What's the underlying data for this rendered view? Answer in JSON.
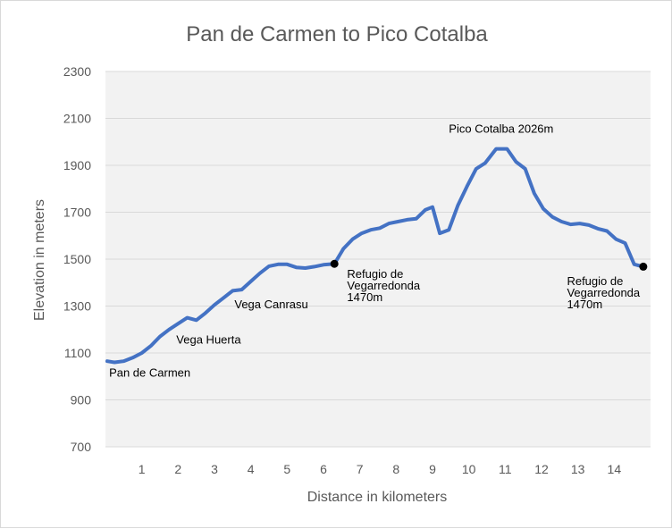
{
  "chart_data": {
    "type": "line",
    "title": "Pan de Carmen to Pico Cotalba",
    "xlabel": "Distance in kilometers",
    "ylabel": "Elevation in meters",
    "xlim": [
      0,
      15
    ],
    "ylim": [
      700,
      2300
    ],
    "x_ticks": [
      "1",
      "2",
      "3",
      "4",
      "5",
      "6",
      "7",
      "8",
      "9",
      "10",
      "11",
      "12",
      "13",
      "14"
    ],
    "y_ticks": [
      "2300",
      "2100",
      "1900",
      "1700",
      "1500",
      "1300",
      "1100",
      "900",
      "700"
    ],
    "grid": true,
    "legend": "none",
    "colors": {
      "line": "#4472c4",
      "plot_bg": "#f2f2f2",
      "grid": "#d9d9d9",
      "marker": "#000000"
    },
    "series": [
      {
        "x": [
          0.05,
          0.25,
          0.5,
          0.75,
          1.0,
          1.25,
          1.5,
          1.75,
          2.0,
          2.25,
          2.5,
          2.75,
          3.0,
          3.25,
          3.5,
          3.75,
          4.0,
          4.25,
          4.5,
          4.75,
          5.0,
          5.25,
          5.5,
          5.75,
          6.0,
          6.3,
          6.55,
          6.8,
          7.05,
          7.3,
          7.55,
          7.8,
          8.05,
          8.3,
          8.55,
          8.8,
          9.0,
          9.2,
          9.45,
          9.7,
          9.95,
          10.2,
          10.45,
          10.75,
          11.05,
          11.3,
          11.55,
          11.8,
          12.05,
          12.3,
          12.55,
          12.8,
          13.05,
          13.3,
          13.55,
          13.8,
          14.05,
          14.3,
          14.55,
          14.8
        ],
        "values": [
          1065,
          1060,
          1065,
          1080,
          1100,
          1130,
          1170,
          1200,
          1225,
          1250,
          1240,
          1270,
          1305,
          1335,
          1365,
          1370,
          1405,
          1440,
          1470,
          1478,
          1478,
          1465,
          1462,
          1468,
          1476,
          1480,
          1545,
          1585,
          1610,
          1625,
          1632,
          1652,
          1660,
          1668,
          1672,
          1710,
          1722,
          1610,
          1625,
          1730,
          1810,
          1885,
          1910,
          1970,
          1970,
          1915,
          1885,
          1780,
          1715,
          1680,
          1660,
          1648,
          1652,
          1645,
          1630,
          1620,
          1585,
          1568,
          1478,
          1468
        ]
      }
    ],
    "markers": [
      {
        "x": 6.3,
        "y": 1480
      },
      {
        "x": 14.8,
        "y": 1468
      }
    ],
    "annotations": [
      {
        "id": "pan-de-carmen",
        "lines": [
          "Pan de Carmen"
        ],
        "x": 0.1,
        "y": 1000
      },
      {
        "id": "vega-huerta",
        "lines": [
          "Vega Huerta"
        ],
        "x": 1.95,
        "y": 1140
      },
      {
        "id": "vega-canrasu",
        "lines": [
          "Vega Canrasu"
        ],
        "x": 3.55,
        "y": 1290
      },
      {
        "id": "refugio-1",
        "lines": [
          "Refugio de",
          "Vegarredonda",
          "1470m"
        ],
        "x": 6.65,
        "y": 1420
      },
      {
        "id": "pico-cotalba",
        "lines": [
          "Pico Cotalba 2026m"
        ],
        "x": 9.45,
        "y": 2040
      },
      {
        "id": "refugio-2",
        "lines": [
          "Refugio de",
          "Vegarredonda",
          "1470m"
        ],
        "x": 12.7,
        "y": 1390
      }
    ]
  }
}
